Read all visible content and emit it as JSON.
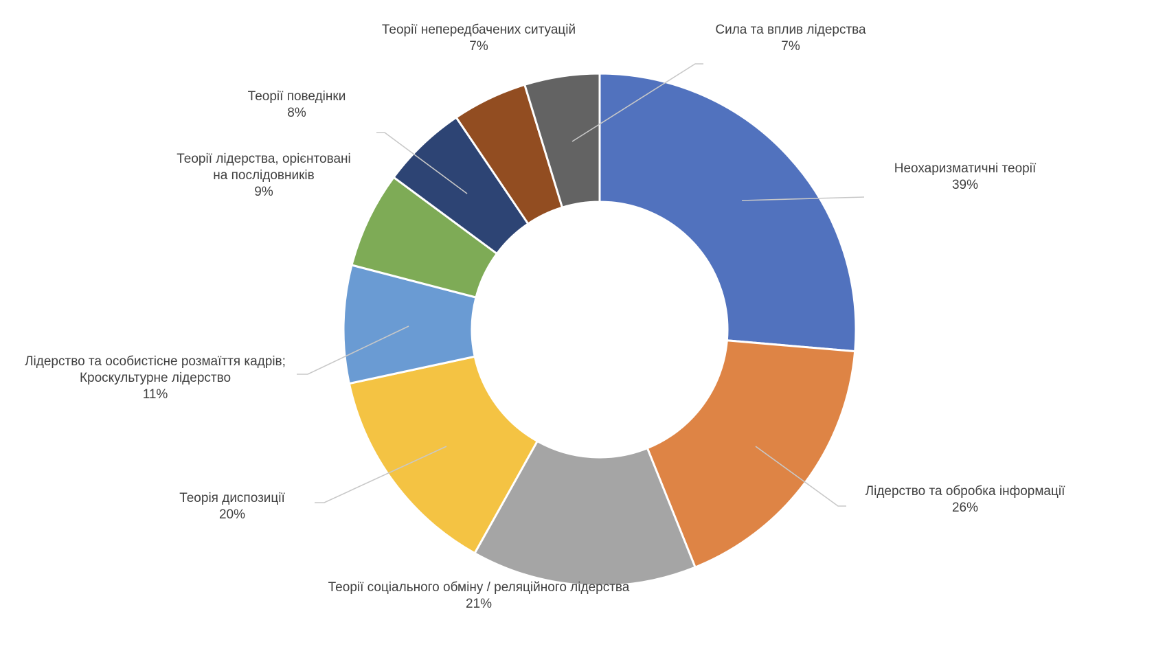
{
  "chart_data": {
    "type": "pie",
    "donut": true,
    "title": "",
    "legend": "none",
    "slices": [
      {
        "lines": [
          "Неохаризматичні теорії"
        ],
        "pct_label": "39%",
        "value": 39,
        "color": "#5172be"
      },
      {
        "lines": [
          "Лідерство та обробка інформації"
        ],
        "pct_label": "26%",
        "value": 26,
        "color": "#de8445"
      },
      {
        "lines": [
          "Теорії соціального обміну / реляційного лідерства"
        ],
        "pct_label": "21%",
        "value": 21,
        "color": "#a5a5a5"
      },
      {
        "lines": [
          "Теорія диспозиції"
        ],
        "pct_label": "20%",
        "value": 20,
        "color": "#f4c343"
      },
      {
        "lines": [
          "Лідерство та особистісне розмаїття кадрів;",
          "Кроскультурне лідерство"
        ],
        "pct_label": "11%",
        "value": 11,
        "color": "#6a9bd3"
      },
      {
        "lines": [
          "Теорії лідерства, орієнтовані",
          "на послідовників"
        ],
        "pct_label": "9%",
        "value": 9,
        "color": "#7eab56"
      },
      {
        "lines": [
          "Теорії  поведінки"
        ],
        "pct_label": "8%",
        "value": 8,
        "color": "#2d4474"
      },
      {
        "lines": [
          "Теорії  непередбачених  ситуацій"
        ],
        "pct_label": "7%",
        "value": 7,
        "color": "#924d21"
      },
      {
        "lines": [
          "Сила та вплив лідерства"
        ],
        "pct_label": "7%",
        "value": 7,
        "color": "#636363"
      }
    ]
  }
}
